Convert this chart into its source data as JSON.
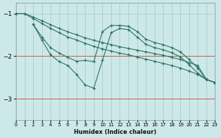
{
  "xlabel": "Humidex (Indice chaleur)",
  "bg_color": "#cce8e8",
  "grid_color": "#aacccc",
  "line_color": "#2a7060",
  "red_color": "#cc5555",
  "xlim": [
    0,
    23
  ],
  "ylim": [
    -3.5,
    -0.75
  ],
  "yticks": [
    -3,
    -2,
    -1
  ],
  "xticks": [
    0,
    1,
    2,
    3,
    4,
    5,
    6,
    7,
    8,
    9,
    10,
    11,
    12,
    13,
    14,
    15,
    16,
    17,
    18,
    19,
    20,
    21,
    22,
    23
  ],
  "series1_x": [
    0,
    1,
    2,
    3,
    4,
    5,
    6,
    7,
    8,
    9,
    10,
    11,
    12,
    13,
    14,
    15,
    16,
    17,
    18,
    19,
    20,
    21,
    22,
    23
  ],
  "series1_y": [
    -1.0,
    -1.0,
    -1.12,
    -1.23,
    -1.35,
    -1.45,
    -1.55,
    -1.62,
    -1.7,
    -1.77,
    -1.83,
    -1.88,
    -1.93,
    -1.97,
    -2.02,
    -2.07,
    -2.12,
    -2.17,
    -2.22,
    -2.28,
    -2.35,
    -2.43,
    -2.55,
    -2.62
  ],
  "series2_x": [
    0,
    1,
    2,
    3,
    4,
    5,
    6,
    7,
    8,
    9,
    10,
    11,
    12,
    13,
    14,
    15,
    16,
    17,
    18,
    19,
    20,
    21,
    22,
    23
  ],
  "series2_y": [
    -1.0,
    -1.0,
    -1.08,
    -1.17,
    -1.26,
    -1.35,
    -1.43,
    -1.5,
    -1.57,
    -1.63,
    -1.68,
    -1.73,
    -1.78,
    -1.82,
    -1.86,
    -1.9,
    -1.94,
    -1.98,
    -2.03,
    -2.08,
    -2.15,
    -2.22,
    -2.55,
    -2.62
  ],
  "series3_x": [
    2,
    3,
    4,
    5,
    6,
    7,
    8,
    9,
    10,
    11,
    12,
    13,
    14,
    15,
    16,
    17,
    18,
    19,
    20,
    21,
    22,
    23
  ],
  "series3_y": [
    -1.25,
    -1.55,
    -1.8,
    -1.93,
    -2.03,
    -2.12,
    -2.1,
    -2.13,
    -1.42,
    -1.28,
    -1.28,
    -1.3,
    -1.42,
    -1.6,
    -1.68,
    -1.73,
    -1.8,
    -1.9,
    -2.08,
    -2.28,
    -2.55,
    -2.62
  ],
  "series4_x": [
    2,
    3,
    4,
    5,
    6,
    7,
    8,
    9,
    10,
    11,
    12,
    13,
    14,
    15,
    16,
    17,
    18,
    19,
    20,
    21,
    22,
    23
  ],
  "series4_y": [
    -1.25,
    -1.62,
    -1.97,
    -2.13,
    -2.22,
    -2.43,
    -2.68,
    -2.75,
    -2.1,
    -1.45,
    -1.35,
    -1.38,
    -1.55,
    -1.72,
    -1.8,
    -1.85,
    -1.92,
    -2.02,
    -2.2,
    -2.4,
    -2.55,
    -2.62
  ]
}
